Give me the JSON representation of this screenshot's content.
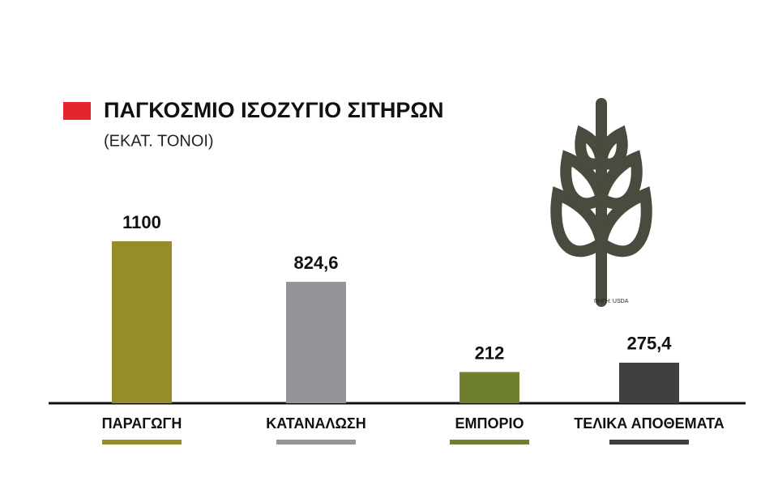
{
  "chart_data": {
    "type": "bar",
    "title": "ΠΑΓΚΟΣΜΙΟ ΙΣΟΖΥΓΙΟ ΣΙΤΗΡΩΝ",
    "subtitle": "(ΕΚΑΤ. ΤΟΝΟΙ)",
    "source": "ΠΗΓΗ: USDA",
    "categories": [
      "ΠΑΡΑΓΩΓΗ",
      "ΚΑΤΑΝΑΛΩΣΗ",
      "ΕΜΠΟΡΙΟ",
      "ΤΕΛΙΚΑ ΑΠΟΘΕΜΑΤΑ"
    ],
    "values": [
      1100,
      824.6,
      212,
      275.4
    ],
    "value_labels": [
      "1100",
      "824,6",
      "212",
      "275,4"
    ],
    "colors": [
      "#978c2a",
      "#939598",
      "#6f7f30",
      "#404040"
    ]
  }
}
